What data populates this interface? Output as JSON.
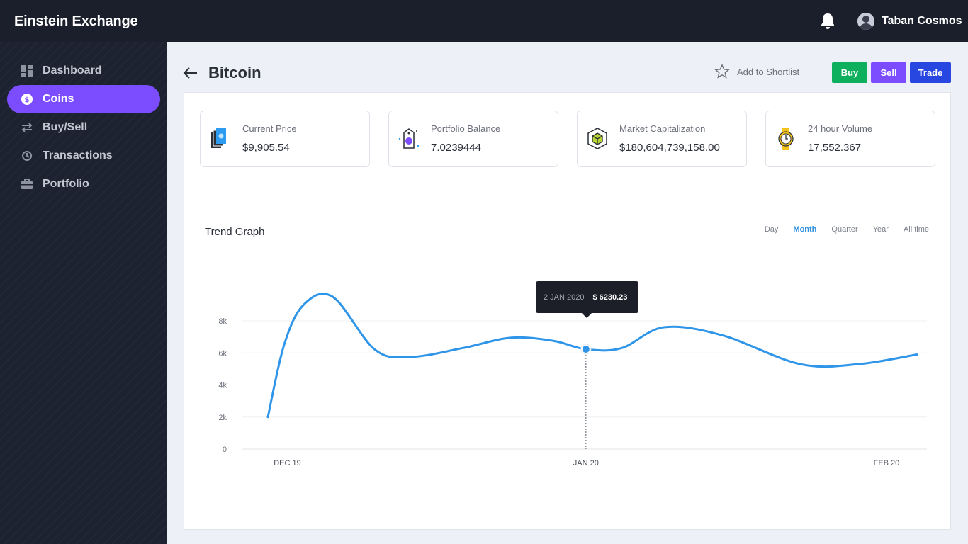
{
  "app": {
    "title": "Einstein Exchange"
  },
  "user": {
    "name": "Taban Cosmos",
    "icon": "bell-icon"
  },
  "sidebar": {
    "items": [
      {
        "label": "Dashboard",
        "icon": "dashboard-icon",
        "active": false
      },
      {
        "label": "Coins",
        "icon": "coin-icon",
        "active": true
      },
      {
        "label": "Buy/Sell",
        "icon": "swap-icon",
        "active": false
      },
      {
        "label": "Transactions",
        "icon": "history-icon",
        "active": false
      },
      {
        "label": "Portfolio",
        "icon": "briefcase-icon",
        "active": false
      }
    ]
  },
  "header": {
    "title": "Bitcoin",
    "shortlist_label": "Add to Shortlist",
    "buy_label": "Buy",
    "sell_label": "Sell",
    "trade_label": "Trade"
  },
  "stats": [
    {
      "label": "Current Price",
      "value": "$9,905.54",
      "icon": "wallet-icon"
    },
    {
      "label": "Portfolio Balance",
      "value": "7.0239444",
      "icon": "price-tag-icon"
    },
    {
      "label": "Market Capitalization",
      "value": "$180,604,739,158.00",
      "icon": "cube-icon"
    },
    {
      "label": "24 hour Volume",
      "value": "17,552.367",
      "icon": "watch-icon"
    }
  ],
  "chart": {
    "title": "Trend Graph",
    "ranges": [
      "Day",
      "Month",
      "Quarter",
      "Year",
      "All time"
    ],
    "active_range": "Month",
    "tooltip": {
      "date": "2 JAN 2020",
      "value": "$ 6230.23"
    }
  },
  "colors": {
    "accent": "#7c4dff",
    "buy": "#0fb05d",
    "trade": "#2747e0",
    "line": "#2f95e8",
    "topbar": "#1b1f2b"
  },
  "chart_data": {
    "type": "line",
    "title": "Trend Graph",
    "x_tick_labels": [
      "DEC 19",
      "JAN 20",
      "FEB 20"
    ],
    "y_tick_labels": [
      "0",
      "2k",
      "4k",
      "6k",
      "8k"
    ],
    "ylim": [
      0,
      8000
    ],
    "grid": true,
    "series": [
      {
        "points": [
          {
            "t": 0.0,
            "y": 2000
          },
          {
            "t": 0.025,
            "y": 6500
          },
          {
            "t": 0.055,
            "y": 9000
          },
          {
            "t": 0.1,
            "y": 9500
          },
          {
            "t": 0.165,
            "y": 6200
          },
          {
            "t": 0.22,
            "y": 5750
          },
          {
            "t": 0.3,
            "y": 6300
          },
          {
            "t": 0.375,
            "y": 6950
          },
          {
            "t": 0.44,
            "y": 6750
          },
          {
            "t": 0.49,
            "y": 6230.23
          },
          {
            "t": 0.545,
            "y": 6300
          },
          {
            "t": 0.61,
            "y": 7600
          },
          {
            "t": 0.7,
            "y": 7100
          },
          {
            "t": 0.82,
            "y": 5300
          },
          {
            "t": 0.91,
            "y": 5300
          },
          {
            "t": 1.0,
            "y": 5900
          }
        ]
      }
    ],
    "highlight": {
      "date": "2 JAN 2020",
      "value": 6230.23
    }
  }
}
